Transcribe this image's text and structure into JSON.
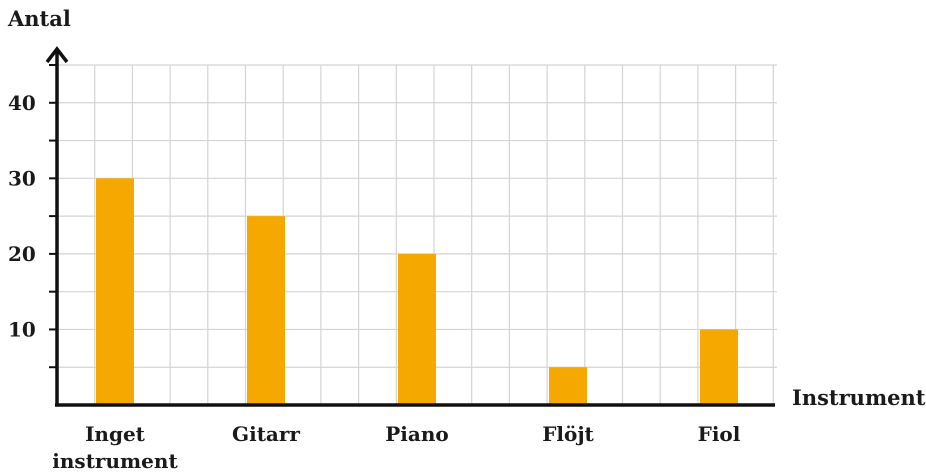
{
  "chart_data": {
    "type": "bar",
    "ylabel": "Antal",
    "xlabel": "Instrument",
    "categories": [
      "Inget instrument",
      "Gitarr",
      "Piano",
      "Flöjt",
      "Fiol"
    ],
    "category_label_lines": [
      [
        "Inget",
        "instrument"
      ],
      [
        "Gitarr"
      ],
      [
        "Piano"
      ],
      [
        "Flöjt"
      ],
      [
        "Fiol"
      ]
    ],
    "values": [
      30,
      25,
      20,
      5,
      10
    ],
    "ylim": [
      0,
      45
    ],
    "yticks": [
      10,
      20,
      30,
      40
    ],
    "minor_tick_step": 5,
    "grid": true,
    "bar_color": "#f5a800"
  }
}
